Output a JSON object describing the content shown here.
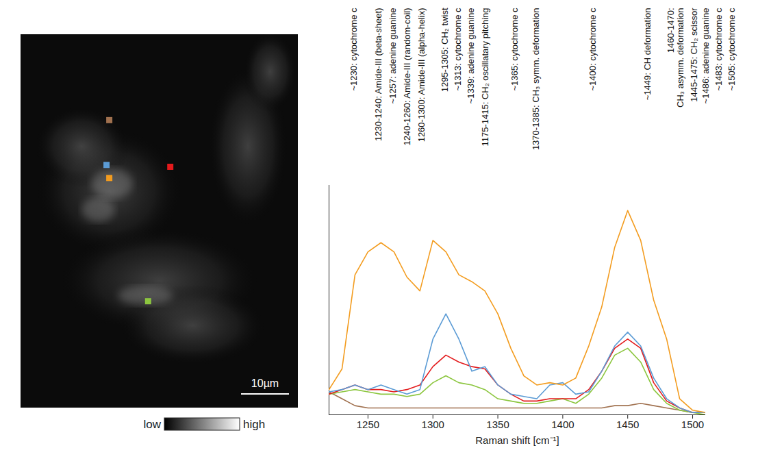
{
  "chart_data": {
    "type": "line",
    "x_label": "Raman shift [cm⁻¹]",
    "xlim": [
      1220,
      1510
    ],
    "xticks": [
      1250,
      1300,
      1350,
      1400,
      1450,
      1500
    ],
    "ylim": [
      0,
      1
    ],
    "grid": false,
    "tick_labels": "x",
    "x": [
      1220,
      1230,
      1240,
      1250,
      1260,
      1270,
      1280,
      1290,
      1300,
      1310,
      1320,
      1330,
      1340,
      1350,
      1360,
      1370,
      1380,
      1390,
      1400,
      1410,
      1420,
      1430,
      1440,
      1450,
      1460,
      1470,
      1480,
      1490,
      1500,
      1510
    ],
    "series": [
      {
        "color": "#f39c1f",
        "values": [
          0.11,
          0.2,
          0.61,
          0.71,
          0.75,
          0.71,
          0.6,
          0.54,
          0.76,
          0.71,
          0.61,
          0.58,
          0.54,
          0.44,
          0.29,
          0.17,
          0.13,
          0.14,
          0.13,
          0.16,
          0.3,
          0.47,
          0.73,
          0.89,
          0.76,
          0.5,
          0.33,
          0.07,
          0.02,
          0.01
        ]
      },
      {
        "color": "#5b9bd5",
        "values": [
          0.1,
          0.11,
          0.13,
          0.11,
          0.13,
          0.11,
          0.09,
          0.11,
          0.33,
          0.44,
          0.33,
          0.19,
          0.21,
          0.13,
          0.09,
          0.08,
          0.07,
          0.13,
          0.14,
          0.09,
          0.1,
          0.19,
          0.3,
          0.36,
          0.3,
          0.16,
          0.07,
          0.03,
          0.01,
          0.01
        ]
      },
      {
        "color": "#e31a1c",
        "values": [
          0.09,
          0.11,
          0.13,
          0.11,
          0.11,
          0.1,
          0.11,
          0.13,
          0.21,
          0.26,
          0.23,
          0.21,
          0.2,
          0.13,
          0.09,
          0.06,
          0.06,
          0.07,
          0.07,
          0.07,
          0.11,
          0.19,
          0.29,
          0.33,
          0.29,
          0.14,
          0.06,
          0.03,
          0.01,
          0.01
        ]
      },
      {
        "color": "#8cc63f",
        "values": [
          0.09,
          0.1,
          0.11,
          0.1,
          0.09,
          0.09,
          0.08,
          0.09,
          0.14,
          0.17,
          0.14,
          0.13,
          0.11,
          0.07,
          0.06,
          0.05,
          0.05,
          0.06,
          0.07,
          0.05,
          0.09,
          0.16,
          0.26,
          0.29,
          0.23,
          0.11,
          0.05,
          0.02,
          0.01,
          0.0
        ]
      },
      {
        "color": "#a0714f",
        "values": [
          0.1,
          0.07,
          0.04,
          0.03,
          0.03,
          0.03,
          0.03,
          0.03,
          0.03,
          0.03,
          0.03,
          0.03,
          0.03,
          0.03,
          0.03,
          0.03,
          0.03,
          0.03,
          0.03,
          0.03,
          0.03,
          0.03,
          0.04,
          0.04,
          0.05,
          0.04,
          0.03,
          0.02,
          0.01,
          0.01
        ]
      }
    ],
    "annotations": [
      {
        "x": 1236,
        "text": "~1230: cytochrome c"
      },
      {
        "x": 1255,
        "text": "1230-1240: Amide-III (beta-sheet)"
      },
      {
        "x": 1266,
        "text": "~1257: adenine guanine"
      },
      {
        "x": 1277,
        "text": "1240-1260: Amide-III (random-coil)"
      },
      {
        "x": 1288,
        "text": "1260-1300: Amide-III (alpha-helix)"
      },
      {
        "x": 1306,
        "text": "1295-1305: CH₂ twist"
      },
      {
        "x": 1316,
        "text": "~1313: cytochrome c"
      },
      {
        "x": 1326,
        "text": "~1339: adenine guanine"
      },
      {
        "x": 1337,
        "text": "1175-1415: CH₂ oscillatary pitching"
      },
      {
        "x": 1360,
        "text": "~1365: cytochrome c"
      },
      {
        "x": 1376,
        "text": "1370-1385: CH₃ symm. deformation"
      },
      {
        "x": 1420,
        "text": "~1400: cytochrome c"
      },
      {
        "x": 1462,
        "text": "~1449: CH deformation"
      },
      {
        "x": 1480,
        "text": "1460-1470:\nCH₃ asymm. deformation"
      },
      {
        "x": 1498,
        "text": "1445-1475: CH₂ scissor"
      },
      {
        "x": 1507,
        "text": "~1486: adenine guanine"
      },
      {
        "x": 1517,
        "text": "~1483: cytochrome c"
      },
      {
        "x": 1527,
        "text": "~1505: cytochrome c"
      }
    ]
  },
  "image": {
    "scale_bar": "10µm",
    "colorbar": [
      "low",
      "high"
    ]
  }
}
